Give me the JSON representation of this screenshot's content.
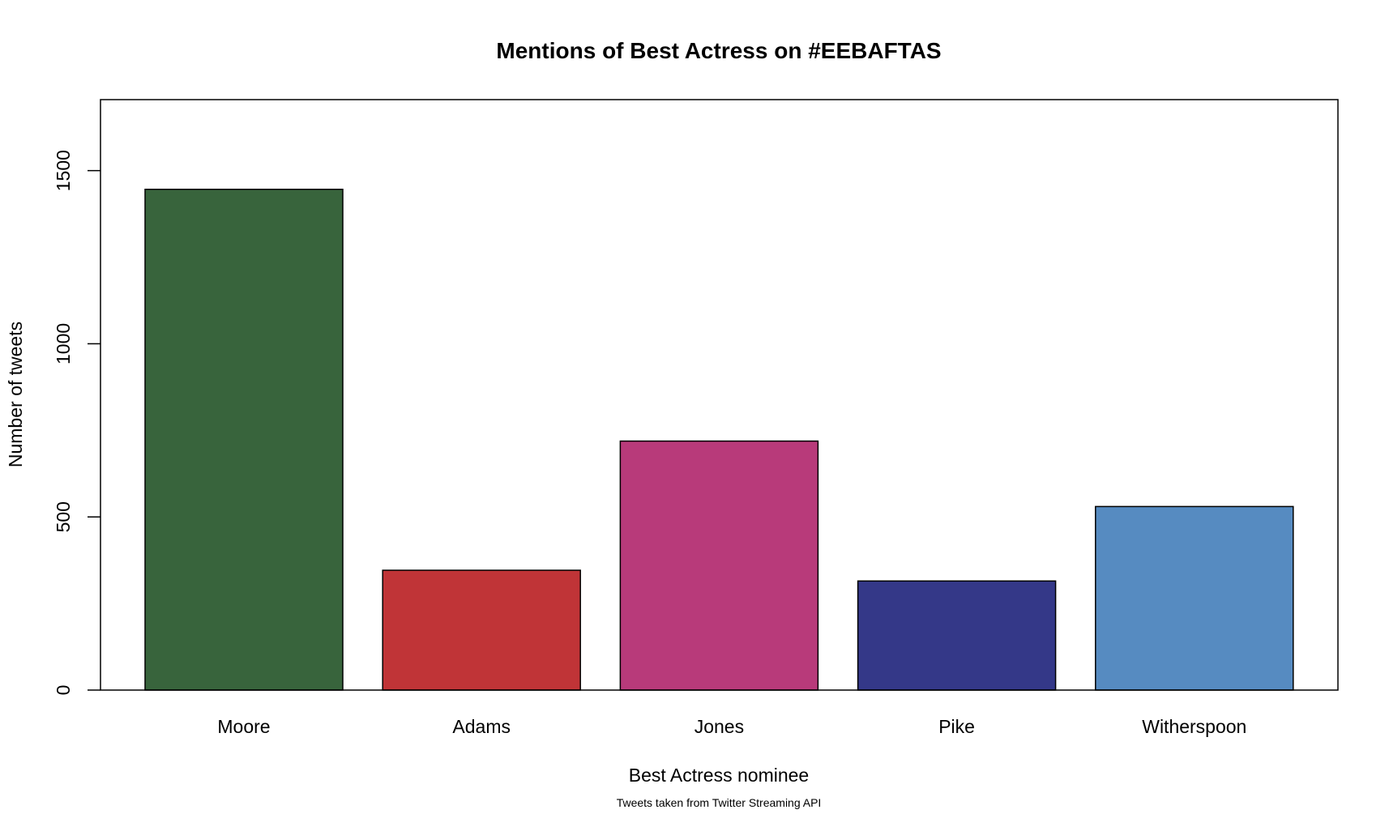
{
  "chart_data": {
    "type": "bar",
    "title": "Mentions of Best Actress on #EEBAFTAS",
    "xlabel": "Best Actress nominee",
    "ylabel": "Number of tweets",
    "footnote": "Tweets taken from Twitter Streaming API",
    "categories": [
      "Moore",
      "Adams",
      "Jones",
      "Pike",
      "Witherspoon"
    ],
    "values": [
      1446,
      346,
      719,
      315,
      530
    ],
    "colors": [
      "#38643c",
      "#c03437",
      "#b83a7a",
      "#343888",
      "#568bc1"
    ],
    "ylim": [
      0,
      1705
    ],
    "yticks": [
      0,
      500,
      1000,
      1500
    ],
    "ytick_labels": [
      "0",
      "500",
      "1000",
      "1500"
    ],
    "grid": false,
    "legend": "none"
  }
}
